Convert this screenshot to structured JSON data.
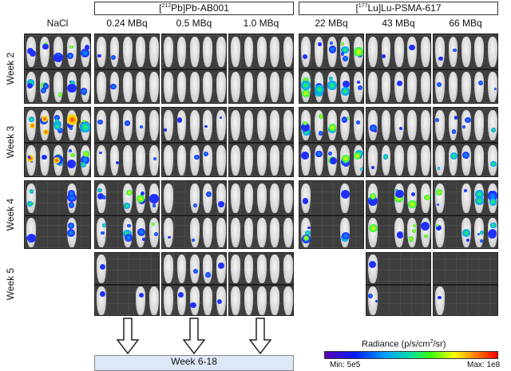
{
  "groups": [
    {
      "prefix": "[",
      "sup": "212",
      "suffix": "Pb]Pb-AB001"
    },
    {
      "prefix": "[",
      "sup": "177",
      "suffix": "Lu]Lu-PSMA-617"
    }
  ],
  "doses": [
    "NaCl",
    "0.24 MBq",
    "0.5 MBq",
    "1.0 MBq",
    "22 MBq",
    "43 MBq",
    "66 MBq"
  ],
  "weeks": [
    "Week 2",
    "Week 3",
    "Week 4",
    "Week 5"
  ],
  "followup_label": "Week 6-18",
  "radiance": {
    "title_prefix": "Radiance (p/s/cm",
    "title_sup": "2",
    "title_suffix": "/sr)",
    "min_label": "Min: 5e5",
    "max_label": "Max: 1e8"
  },
  "colors": {
    "panel_bg": "#3e3e3e",
    "followup_box": "#dde8f6"
  }
}
